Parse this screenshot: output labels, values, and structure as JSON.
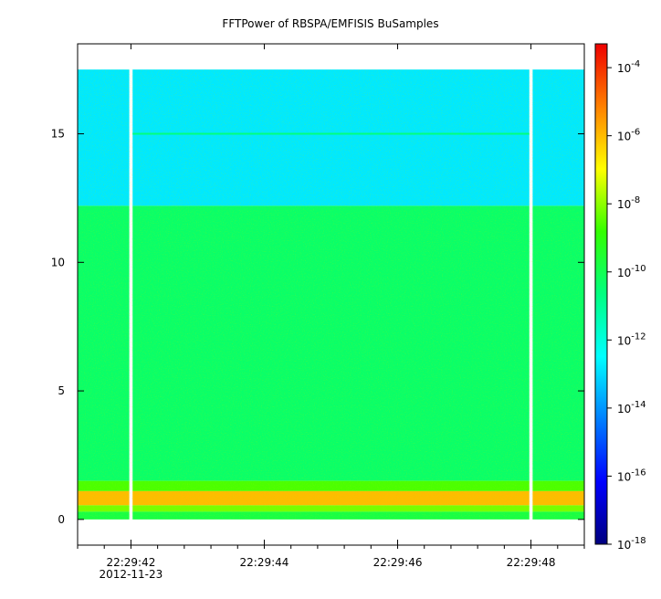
{
  "chart_data": {
    "type": "heatmap",
    "title": "FFTPower of RBSPA/EMFISIS  BuSamples",
    "xlabel": "",
    "ylabel": "",
    "x": {
      "start": "22:29:41.2",
      "end": "22:29:48.8",
      "start_s": 41.2,
      "end_s": 48.8,
      "ticks": [
        {
          "value": 42,
          "label": "22:29:42",
          "sublabel": "2012-11-23"
        },
        {
          "value": 44,
          "label": "22:29:44",
          "sublabel": ""
        },
        {
          "value": 46,
          "label": "22:29:46",
          "sublabel": ""
        },
        {
          "value": 48,
          "label": "22:29:48",
          "sublabel": ""
        }
      ],
      "minor_ticks": [
        41.2,
        41.6,
        42,
        42.4,
        42.8,
        43.2,
        43.6,
        44,
        44.4,
        44.8,
        45.2,
        45.6,
        46,
        46.4,
        46.8,
        47.2,
        47.6,
        48,
        48.4,
        48.8
      ],
      "data_gaps": [
        42.0,
        48.0
      ]
    },
    "y": {
      "range": [
        -1,
        18.5
      ],
      "data_max": 17.5,
      "ticks": [
        0,
        5,
        10,
        15
      ]
    },
    "colorbar": {
      "scale": "log",
      "range_exp": [
        -18,
        -3.3
      ],
      "tick_exps": [
        -18,
        -16,
        -14,
        -12,
        -10,
        -8,
        -6,
        -4
      ]
    },
    "bands": [
      {
        "from": 12.2,
        "to": 17.5,
        "level_exp": -12.8
      },
      {
        "from": 1.5,
        "to": 12.2,
        "level_exp": -10.3
      },
      {
        "from": 1.1,
        "to": 1.5,
        "level_exp": -8.6
      },
      {
        "from": 0.55,
        "to": 1.1,
        "level_exp": -6.0
      },
      {
        "from": 0.3,
        "to": 0.55,
        "level_exp": -8.2
      },
      {
        "from": 0.0,
        "to": 0.3,
        "level_exp": -9.8
      }
    ],
    "line_feature": {
      "y": 15.0,
      "level_exp": -10.6
    }
  }
}
